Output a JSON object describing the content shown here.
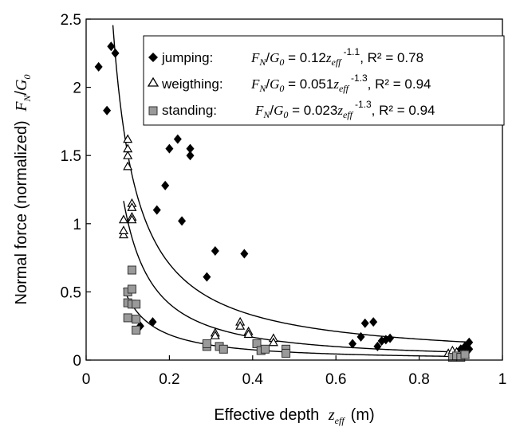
{
  "chart_data": {
    "type": "scatter",
    "xlabel": {
      "text": "Effective depth",
      "symbol": "z",
      "symbol_sub": "eff",
      "unit": "(m)"
    },
    "ylabel": {
      "text": "Normal force (normalized)",
      "symbol": "F",
      "symbol_sub": "N",
      "op": "/",
      "symbol2": "G",
      "symbol2_sub": "0"
    },
    "xlim": [
      0,
      1
    ],
    "ylim": [
      0,
      2.5
    ],
    "x_ticks": [
      0,
      0.2,
      0.4,
      0.6,
      0.8,
      1
    ],
    "x_tick_labels": [
      "0",
      "0.2",
      "0.4",
      "0.6",
      "0.8",
      "1"
    ],
    "y_ticks": [
      0,
      0.5,
      1,
      1.5,
      2,
      2.5
    ],
    "y_tick_labels": [
      "0",
      "0.5",
      "1",
      "1.5",
      "2",
      "2.5"
    ],
    "legend_position": "top-right",
    "series": [
      {
        "name": "jumping:",
        "marker": "diamond",
        "fit": {
          "coef": 0.12,
          "exp": -1.1,
          "x_start": 0.06,
          "x_end": 0.92
        },
        "equation": {
          "coef": "0.12",
          "exp": "-1.1",
          "r2": "R² = 0.78"
        },
        "points": [
          [
            0.03,
            2.15
          ],
          [
            0.05,
            1.83
          ],
          [
            0.06,
            2.3
          ],
          [
            0.07,
            2.25
          ],
          [
            0.13,
            0.25
          ],
          [
            0.16,
            0.28
          ],
          [
            0.17,
            1.1
          ],
          [
            0.19,
            1.28
          ],
          [
            0.2,
            1.55
          ],
          [
            0.22,
            1.62
          ],
          [
            0.23,
            1.02
          ],
          [
            0.25,
            1.55
          ],
          [
            0.25,
            1.5
          ],
          [
            0.29,
            0.61
          ],
          [
            0.31,
            0.8
          ],
          [
            0.38,
            0.78
          ],
          [
            0.64,
            0.12
          ],
          [
            0.66,
            0.17
          ],
          [
            0.67,
            0.27
          ],
          [
            0.69,
            0.28
          ],
          [
            0.7,
            0.1
          ],
          [
            0.71,
            0.14
          ],
          [
            0.72,
            0.15
          ],
          [
            0.73,
            0.16
          ],
          [
            0.89,
            0.05
          ],
          [
            0.9,
            0.08
          ],
          [
            0.91,
            0.1
          ],
          [
            0.92,
            0.13
          ],
          [
            0.92,
            0.08
          ]
        ]
      },
      {
        "name": "weigthing:",
        "marker": "triangle",
        "fit": {
          "coef": 0.051,
          "exp": -1.3,
          "x_start": 0.09,
          "x_end": 0.92
        },
        "equation": {
          "coef": "0.051",
          "exp": "-1.3",
          "r2": "R² = 0.94"
        },
        "points": [
          [
            0.09,
            0.92
          ],
          [
            0.09,
            0.95
          ],
          [
            0.09,
            1.03
          ],
          [
            0.1,
            1.62
          ],
          [
            0.1,
            1.55
          ],
          [
            0.1,
            1.5
          ],
          [
            0.1,
            1.42
          ],
          [
            0.11,
            1.15
          ],
          [
            0.11,
            1.12
          ],
          [
            0.11,
            1.05
          ],
          [
            0.11,
            1.03
          ],
          [
            0.31,
            0.2
          ],
          [
            0.31,
            0.18
          ],
          [
            0.37,
            0.28
          ],
          [
            0.37,
            0.25
          ],
          [
            0.39,
            0.21
          ],
          [
            0.39,
            0.19
          ],
          [
            0.45,
            0.16
          ],
          [
            0.45,
            0.13
          ],
          [
            0.87,
            0.05
          ],
          [
            0.88,
            0.07
          ],
          [
            0.89,
            0.06
          ],
          [
            0.9,
            0.05
          ],
          [
            0.91,
            0.04
          ]
        ]
      },
      {
        "name": "standing:",
        "marker": "square",
        "fit": {
          "coef": 0.023,
          "exp": -1.3,
          "x_start": 0.09,
          "x_end": 0.92
        },
        "equation": {
          "coef": "0.023",
          "exp": "-1.3",
          "r2": "R² = 0.94"
        },
        "points": [
          [
            0.1,
            0.5
          ],
          [
            0.1,
            0.42
          ],
          [
            0.1,
            0.31
          ],
          [
            0.11,
            0.66
          ],
          [
            0.11,
            0.52
          ],
          [
            0.11,
            0.41
          ],
          [
            0.12,
            0.3
          ],
          [
            0.12,
            0.41
          ],
          [
            0.12,
            0.22
          ],
          [
            0.29,
            0.1
          ],
          [
            0.29,
            0.12
          ],
          [
            0.32,
            0.1
          ],
          [
            0.33,
            0.08
          ],
          [
            0.41,
            0.12
          ],
          [
            0.42,
            0.07
          ],
          [
            0.43,
            0.08
          ],
          [
            0.48,
            0.08
          ],
          [
            0.48,
            0.05
          ],
          [
            0.88,
            0.02
          ],
          [
            0.89,
            0.03
          ],
          [
            0.9,
            0.02
          ],
          [
            0.91,
            0.04
          ]
        ]
      }
    ]
  }
}
